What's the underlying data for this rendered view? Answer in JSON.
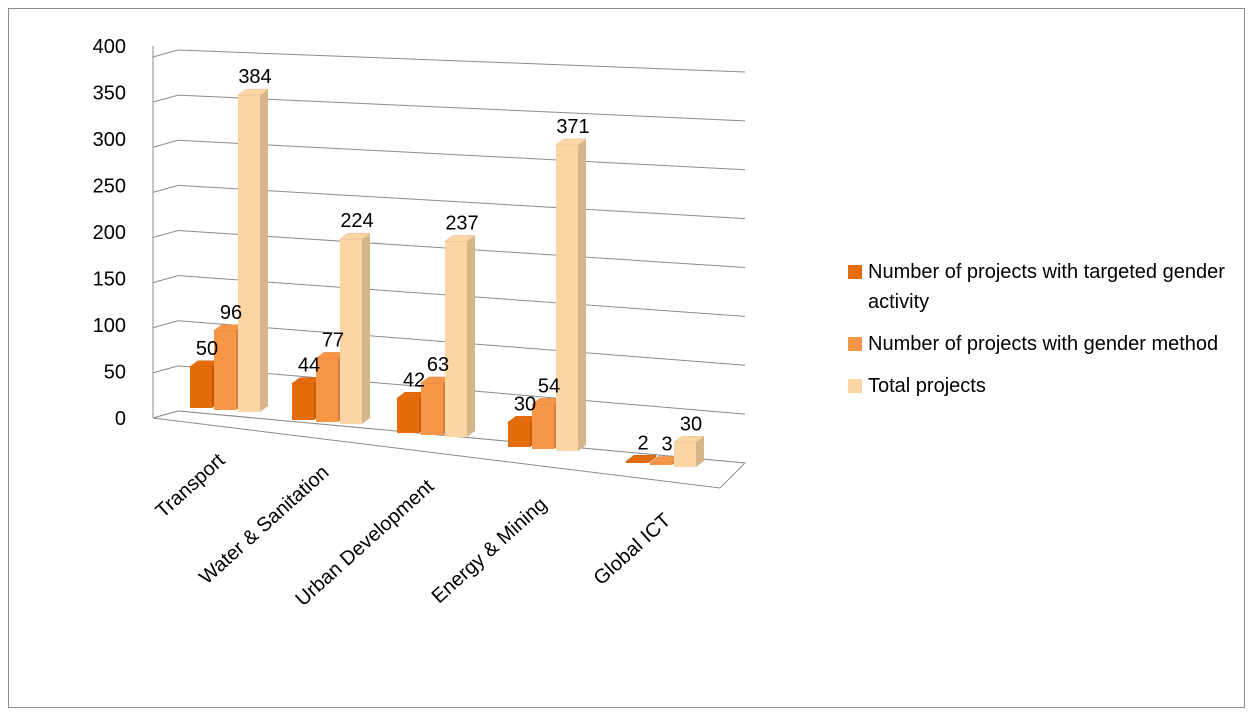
{
  "chart_data": {
    "type": "bar",
    "three_d": true,
    "categories": [
      "Transport",
      "Water & Sanitation",
      "Urban Development",
      "Energy & Mining",
      "Global ICT"
    ],
    "series": [
      {
        "name": "Number of projects with targeted gender activity",
        "values": [
          50,
          44,
          42,
          30,
          2
        ],
        "color": "#e46c0a"
      },
      {
        "name": "Number of projects with gender method",
        "values": [
          96,
          77,
          63,
          54,
          3
        ],
        "color": "#f79646"
      },
      {
        "name": "Total projects",
        "values": [
          384,
          224,
          237,
          371,
          30
        ],
        "color": "#fcd5a4"
      }
    ],
    "ylim": [
      0,
      400
    ],
    "yticks": [
      "0",
      "50",
      "100",
      "150",
      "200",
      "250",
      "300",
      "350",
      "400"
    ],
    "data_labels": true,
    "grid": true,
    "legend_position": "right"
  }
}
